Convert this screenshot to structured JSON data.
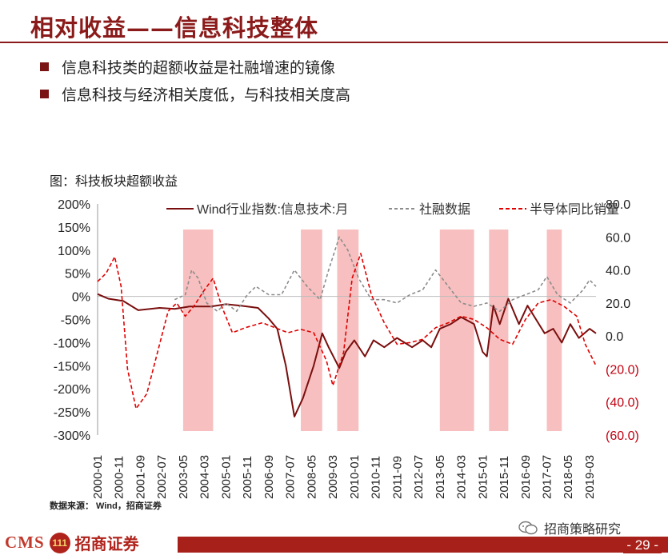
{
  "header": {
    "title": "相对收益——信息科技整体",
    "bullets": [
      "信息科技类的超额收益是社融增速的镜像",
      "信息科技与经济相关度低，与科技相关度高"
    ]
  },
  "figure": {
    "title": "图：科技板块超额收益",
    "source": "数据来源： Wind，招商证券"
  },
  "footer": {
    "logo_text": "CMS",
    "logo_mark": "111",
    "logo_name": "招商证券",
    "wechat": "招商策略研究",
    "page": "- 29 -"
  },
  "colors": {
    "brand": "#8b1a1a",
    "series_wind": "#7a0e0e",
    "series_social": "#8c8c8c",
    "series_semi": "#e00000",
    "shade": "#f6b4b4",
    "right_axis_negative": "#c0000f"
  },
  "chart_data": {
    "type": "line",
    "x_start": "2000-01",
    "x_end": "2019-06",
    "x_ticks": [
      "2000-01",
      "2000-11",
      "2001-09",
      "2002-07",
      "2003-05",
      "2004-03",
      "2005-01",
      "2005-11",
      "2006-09",
      "2007-07",
      "2008-05",
      "2009-03",
      "2010-01",
      "2010-11",
      "2011-09",
      "2012-07",
      "2013-05",
      "2014-03",
      "2015-01",
      "2015-11",
      "2016-09",
      "2017-07",
      "2018-05",
      "2019-03"
    ],
    "y_left": {
      "ticks": [
        "200%",
        "150%",
        "100%",
        "50%",
        "0%",
        "-50%",
        "-100%",
        "-150%",
        "-200%",
        "-250%",
        "-300%"
      ],
      "ylim": [
        -300,
        200
      ]
    },
    "y_right": {
      "ticks": [
        "80.0",
        "60.0",
        "40.0",
        "20.0",
        "0.0",
        "(20.0)",
        "(40.0)",
        "(60.0)"
      ],
      "negative_ticks": [
        "(20.0)",
        "(40.0)",
        "(60.0)"
      ],
      "ylim": [
        -60,
        80
      ]
    },
    "legend": [
      "Wind行业指数:信息技术:月",
      "社融数据",
      "半导体同比销量"
    ],
    "legend_position": "top",
    "shaded_periods": [
      [
        "2003-05",
        "2004-07"
      ],
      [
        "2007-12",
        "2008-10"
      ],
      [
        "2009-05",
        "2010-03"
      ],
      [
        "2013-05",
        "2014-09"
      ],
      [
        "2015-04",
        "2016-01"
      ],
      [
        "2017-07",
        "2018-02"
      ]
    ],
    "series": [
      {
        "name": "Wind行业指数:信息技术:月",
        "axis": "left",
        "style": "solid",
        "points": [
          [
            "2000-01",
            5
          ],
          [
            "2000-06",
            -5
          ],
          [
            "2001-01",
            -10
          ],
          [
            "2001-08",
            -30
          ],
          [
            "2002-06",
            -25
          ],
          [
            "2003-01",
            -27
          ],
          [
            "2003-08",
            -22
          ],
          [
            "2004-06",
            -22
          ],
          [
            "2005-01",
            -17
          ],
          [
            "2005-08",
            -20
          ],
          [
            "2006-04",
            -25
          ],
          [
            "2006-09",
            -48
          ],
          [
            "2007-01",
            -70
          ],
          [
            "2007-05",
            -150
          ],
          [
            "2007-09",
            -260
          ],
          [
            "2008-01",
            -220
          ],
          [
            "2008-06",
            -150
          ],
          [
            "2008-10",
            -80
          ],
          [
            "2009-01",
            -110
          ],
          [
            "2009-06",
            -155
          ],
          [
            "2009-09",
            -120
          ],
          [
            "2010-01",
            -95
          ],
          [
            "2010-06",
            -130
          ],
          [
            "2010-10",
            -95
          ],
          [
            "2011-03",
            -110
          ],
          [
            "2011-09",
            -90
          ],
          [
            "2012-04",
            -110
          ],
          [
            "2012-09",
            -95
          ],
          [
            "2013-01",
            -110
          ],
          [
            "2013-05",
            -70
          ],
          [
            "2013-10",
            -60
          ],
          [
            "2014-03",
            -45
          ],
          [
            "2014-09",
            -60
          ],
          [
            "2015-01",
            -120
          ],
          [
            "2015-03",
            -130
          ],
          [
            "2015-06",
            -20
          ],
          [
            "2015-09",
            -60
          ],
          [
            "2016-01",
            -5
          ],
          [
            "2016-06",
            -60
          ],
          [
            "2016-10",
            -20
          ],
          [
            "2017-02",
            -50
          ],
          [
            "2017-06",
            -80
          ],
          [
            "2017-10",
            -70
          ],
          [
            "2018-02",
            -100
          ],
          [
            "2018-06",
            -60
          ],
          [
            "2018-10",
            -90
          ],
          [
            "2019-03",
            -70
          ],
          [
            "2019-06",
            -80
          ]
        ]
      },
      {
        "name": "社融数据",
        "axis": "right",
        "style": "dashed",
        "points": [
          [
            "2003-01",
            22
          ],
          [
            "2003-06",
            25
          ],
          [
            "2003-09",
            40
          ],
          [
            "2003-12",
            35
          ],
          [
            "2004-04",
            20
          ],
          [
            "2004-09",
            15
          ],
          [
            "2005-01",
            20
          ],
          [
            "2005-06",
            15
          ],
          [
            "2005-11",
            25
          ],
          [
            "2006-03",
            30
          ],
          [
            "2006-09",
            25
          ],
          [
            "2007-03",
            25
          ],
          [
            "2007-09",
            40
          ],
          [
            "2008-03",
            30
          ],
          [
            "2008-09",
            22
          ],
          [
            "2009-01",
            40
          ],
          [
            "2009-06",
            60
          ],
          [
            "2009-10",
            52
          ],
          [
            "2010-03",
            35
          ],
          [
            "2010-09",
            22
          ],
          [
            "2011-03",
            22
          ],
          [
            "2011-09",
            20
          ],
          [
            "2012-03",
            25
          ],
          [
            "2012-09",
            28
          ],
          [
            "2013-03",
            40
          ],
          [
            "2013-09",
            30
          ],
          [
            "2014-03",
            20
          ],
          [
            "2014-09",
            18
          ],
          [
            "2015-03",
            20
          ],
          [
            "2015-09",
            15
          ],
          [
            "2016-03",
            22
          ],
          [
            "2016-09",
            25
          ],
          [
            "2017-03",
            28
          ],
          [
            "2017-07",
            36
          ],
          [
            "2017-12",
            25
          ],
          [
            "2018-06",
            20
          ],
          [
            "2018-12",
            28
          ],
          [
            "2019-03",
            34
          ],
          [
            "2019-06",
            30
          ]
        ]
      },
      {
        "name": "半导体同比销量",
        "axis": "right",
        "style": "dashed",
        "points": [
          [
            "2000-01",
            33
          ],
          [
            "2000-05",
            38
          ],
          [
            "2000-09",
            48
          ],
          [
            "2000-12",
            30
          ],
          [
            "2001-03",
            -20
          ],
          [
            "2001-07",
            -44
          ],
          [
            "2001-12",
            -35
          ],
          [
            "2002-06",
            -5
          ],
          [
            "2002-10",
            15
          ],
          [
            "2003-02",
            20
          ],
          [
            "2003-06",
            12
          ],
          [
            "2003-10",
            18
          ],
          [
            "2004-03",
            28
          ],
          [
            "2004-07",
            35
          ],
          [
            "2004-11",
            18
          ],
          [
            "2005-04",
            2
          ],
          [
            "2005-10",
            5
          ],
          [
            "2006-06",
            8
          ],
          [
            "2006-12",
            5
          ],
          [
            "2007-06",
            2
          ],
          [
            "2007-12",
            4
          ],
          [
            "2008-06",
            2
          ],
          [
            "2008-12",
            -15
          ],
          [
            "2009-03",
            -30
          ],
          [
            "2009-08",
            -10
          ],
          [
            "2009-12",
            35
          ],
          [
            "2010-04",
            50
          ],
          [
            "2010-09",
            25
          ],
          [
            "2011-03",
            8
          ],
          [
            "2011-09",
            -5
          ],
          [
            "2012-03",
            -4
          ],
          [
            "2012-09",
            -2
          ],
          [
            "2013-03",
            5
          ],
          [
            "2013-09",
            8
          ],
          [
            "2014-03",
            12
          ],
          [
            "2014-09",
            10
          ],
          [
            "2015-03",
            5
          ],
          [
            "2015-09",
            -2
          ],
          [
            "2016-03",
            -5
          ],
          [
            "2016-09",
            10
          ],
          [
            "2017-03",
            20
          ],
          [
            "2017-09",
            22
          ],
          [
            "2018-03",
            18
          ],
          [
            "2018-09",
            12
          ],
          [
            "2019-01",
            -5
          ],
          [
            "2019-06",
            -18
          ]
        ]
      }
    ]
  }
}
